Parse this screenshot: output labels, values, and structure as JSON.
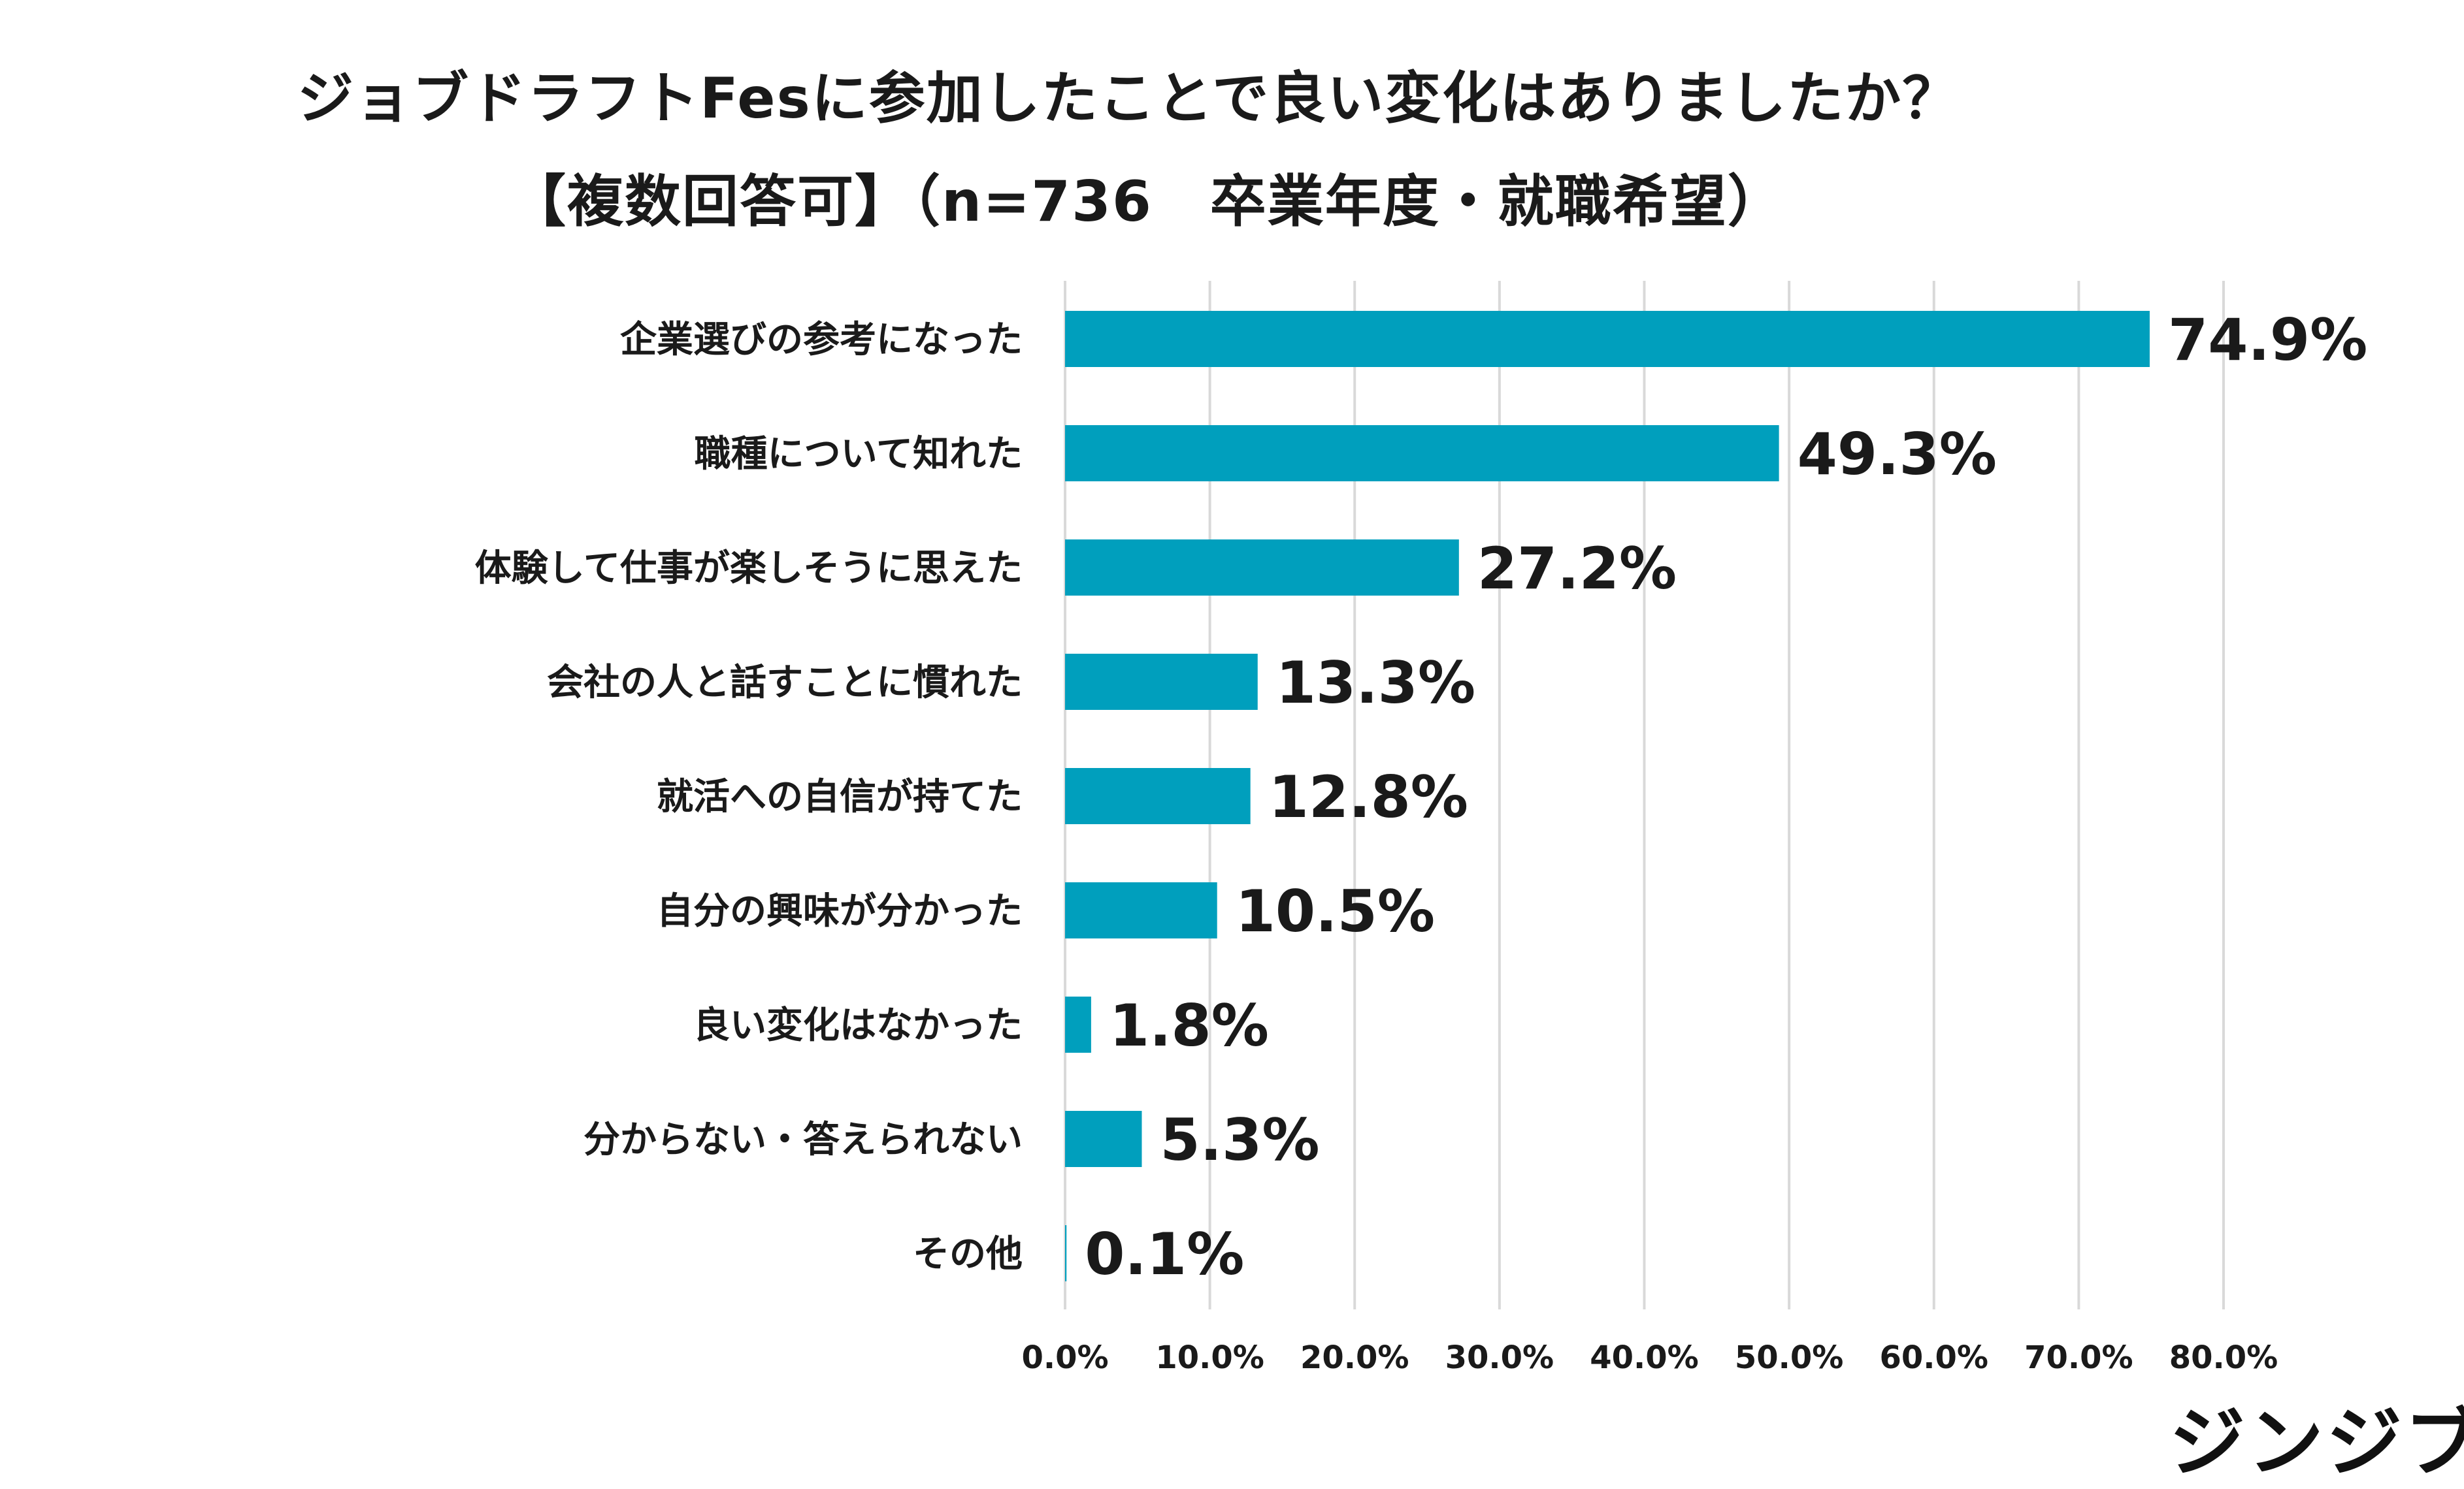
{
  "title_line1": "ジョブドラフトFesに参加したことで良い変化はありましたか？",
  "title_line2": "【複数回答可】（n=736　卒業年度・就職希望）",
  "logo_text": "ジンジブ",
  "colors": {
    "bar": "#009fbd",
    "grid": "#d9d9d9",
    "text": "#1a1a1a"
  },
  "chart_data": {
    "type": "bar",
    "orientation": "horizontal",
    "title": "ジョブドラフトFesに参加したことで良い変化はありましたか？",
    "subtitle": "【複数回答可】（n=736　卒業年度・就職希望）",
    "categories": [
      "企業選びの参考になった",
      "職種について知れた",
      "体験して仕事が楽しそうに思えた",
      "会社の人と話すことに慣れた",
      "就活への自信が持てた",
      "自分の興味が分かった",
      "良い変化はなかった",
      "分からない・答えられない",
      "その他"
    ],
    "values": [
      74.9,
      49.3,
      27.2,
      13.3,
      12.8,
      10.5,
      1.8,
      5.3,
      0.1
    ],
    "value_labels": [
      "74.9%",
      "49.3%",
      "27.2%",
      "13.3%",
      "12.8%",
      "10.5%",
      "1.8%",
      "5.3%",
      "0.1%"
    ],
    "xlim": [
      0,
      80
    ],
    "x_ticks": [
      0,
      10,
      20,
      30,
      40,
      50,
      60,
      70,
      80
    ],
    "x_tick_labels": [
      "0.0%",
      "10.0%",
      "20.0%",
      "30.0%",
      "40.0%",
      "50.0%",
      "60.0%",
      "70.0%",
      "80.0%"
    ],
    "grid": true,
    "xlabel": "",
    "ylabel": ""
  }
}
